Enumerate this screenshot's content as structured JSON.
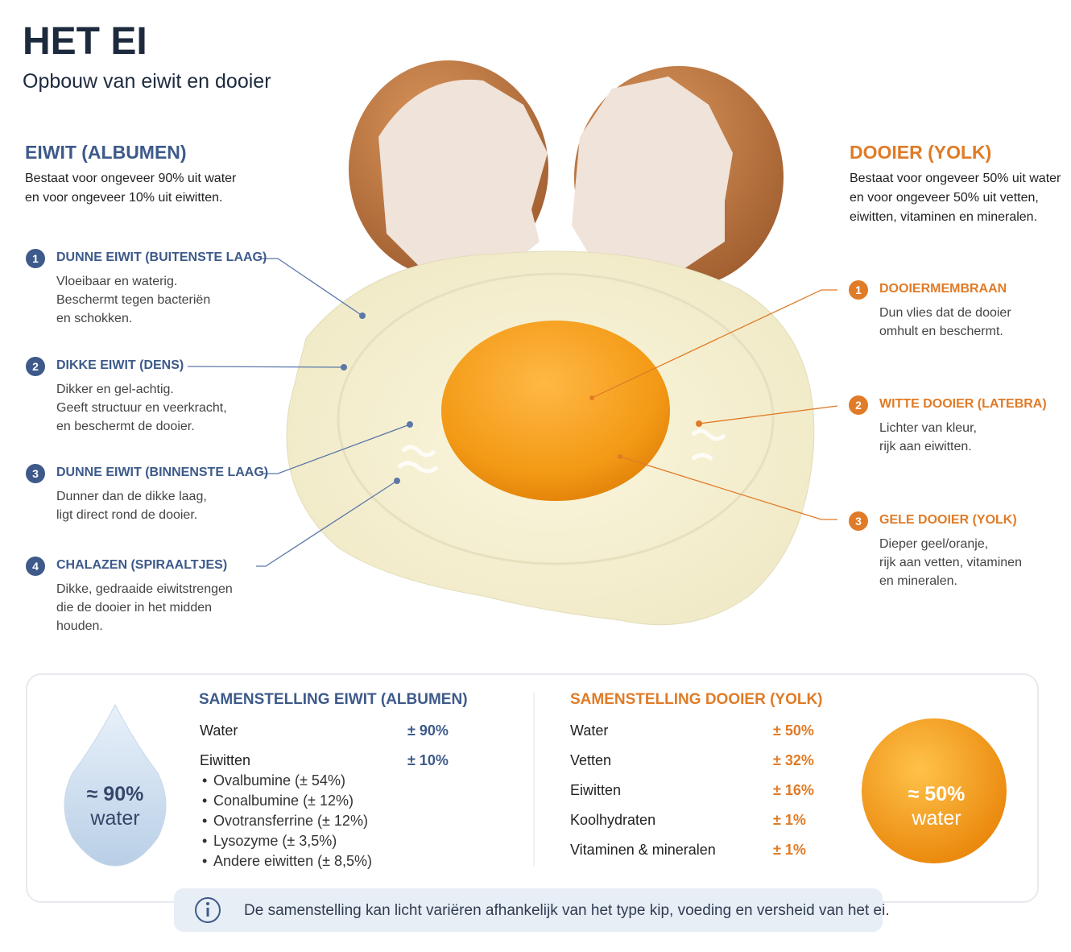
{
  "header": {
    "title": "HET EI",
    "subtitle": "Opbouw van eiwit en dooier"
  },
  "albumen": {
    "heading": "EIWIT (ALBUMEN)",
    "intro": [
      "Bestaat voor ongeveer 90% uit water",
      "en voor ongeveer 10% uit eiwitten."
    ],
    "parts": [
      {
        "number": "1",
        "title": "DUNNE EIWIT (BUITENSTE LAAG)",
        "lines": [
          "Vloeibaar en waterig.",
          "Beschermt tegen bacteriën",
          "en schokken."
        ]
      },
      {
        "number": "2",
        "title": "DIKKE EIWIT (DENS)",
        "lines": [
          "Dikker en gel-achtig.",
          "Geeft structuur en veerkracht,",
          "en beschermt de dooier."
        ]
      },
      {
        "number": "3",
        "title": "DUNNE EIWIT (BINNENSTE LAAG)",
        "lines": [
          "Dunner dan de dikke laag,",
          "ligt direct rond de dooier."
        ]
      },
      {
        "number": "4",
        "title": "CHALAZEN (SPIRAALTJES)",
        "lines": [
          "Dikke, gedraaide eiwitstrengen",
          "die de dooier in het midden",
          "houden."
        ]
      }
    ]
  },
  "yolk": {
    "heading": "DOOIER (YOLK)",
    "intro": [
      "Bestaat voor ongeveer 50% uit water",
      "en voor ongeveer 50% uit vetten,",
      "eiwitten, vitaminen en mineralen."
    ],
    "parts": [
      {
        "number": "1",
        "title": "DOOIERMEMBRAAN",
        "lines": [
          "Dun vlies dat de dooier",
          "omhult en beschermt."
        ]
      },
      {
        "number": "2",
        "title": "WITTE DOOIER (LATEBRA)",
        "lines": [
          "Lichter van kleur,",
          "rijk aan eiwitten."
        ]
      },
      {
        "number": "3",
        "title": "GELE DOOIER (YOLK)",
        "lines": [
          "Dieper geel/oranje,",
          "rijk aan vetten, vitaminen",
          "en mineralen."
        ]
      }
    ]
  },
  "composition": {
    "albumen": {
      "heading": "SAMENSTELLING EIWIT (ALBUMEN)",
      "rows": [
        {
          "label": "Water",
          "value": "± 90%"
        },
        {
          "label": "Eiwitten",
          "value": "± 10%"
        }
      ],
      "subitems": [
        "Ovalbumine (± 54%)",
        "Conalbumine (± 12%)",
        "Ovotransferrine (± 12%)",
        "Lysozyme (± 3,5%)",
        "Andere eiwitten (± 8,5%)"
      ],
      "badge": [
        "≈ 90%",
        "water"
      ]
    },
    "yolk": {
      "heading": "SAMENSTELLING DOOIER (YOLK)",
      "rows": [
        {
          "label": "Water",
          "value": "± 50%"
        },
        {
          "label": "Vetten",
          "value": "± 32%"
        },
        {
          "label": "Eiwitten",
          "value": "± 16%"
        },
        {
          "label": "Koolhydraten",
          "value": "± 1%"
        },
        {
          "label": "Vitaminen & mineralen",
          "value": "± 1%"
        }
      ],
      "badge": [
        "≈ 50%",
        "water"
      ]
    }
  },
  "note": "De samenstelling kan licht variëren afhankelijk van het type kip, voeding en versheid van het ei."
}
